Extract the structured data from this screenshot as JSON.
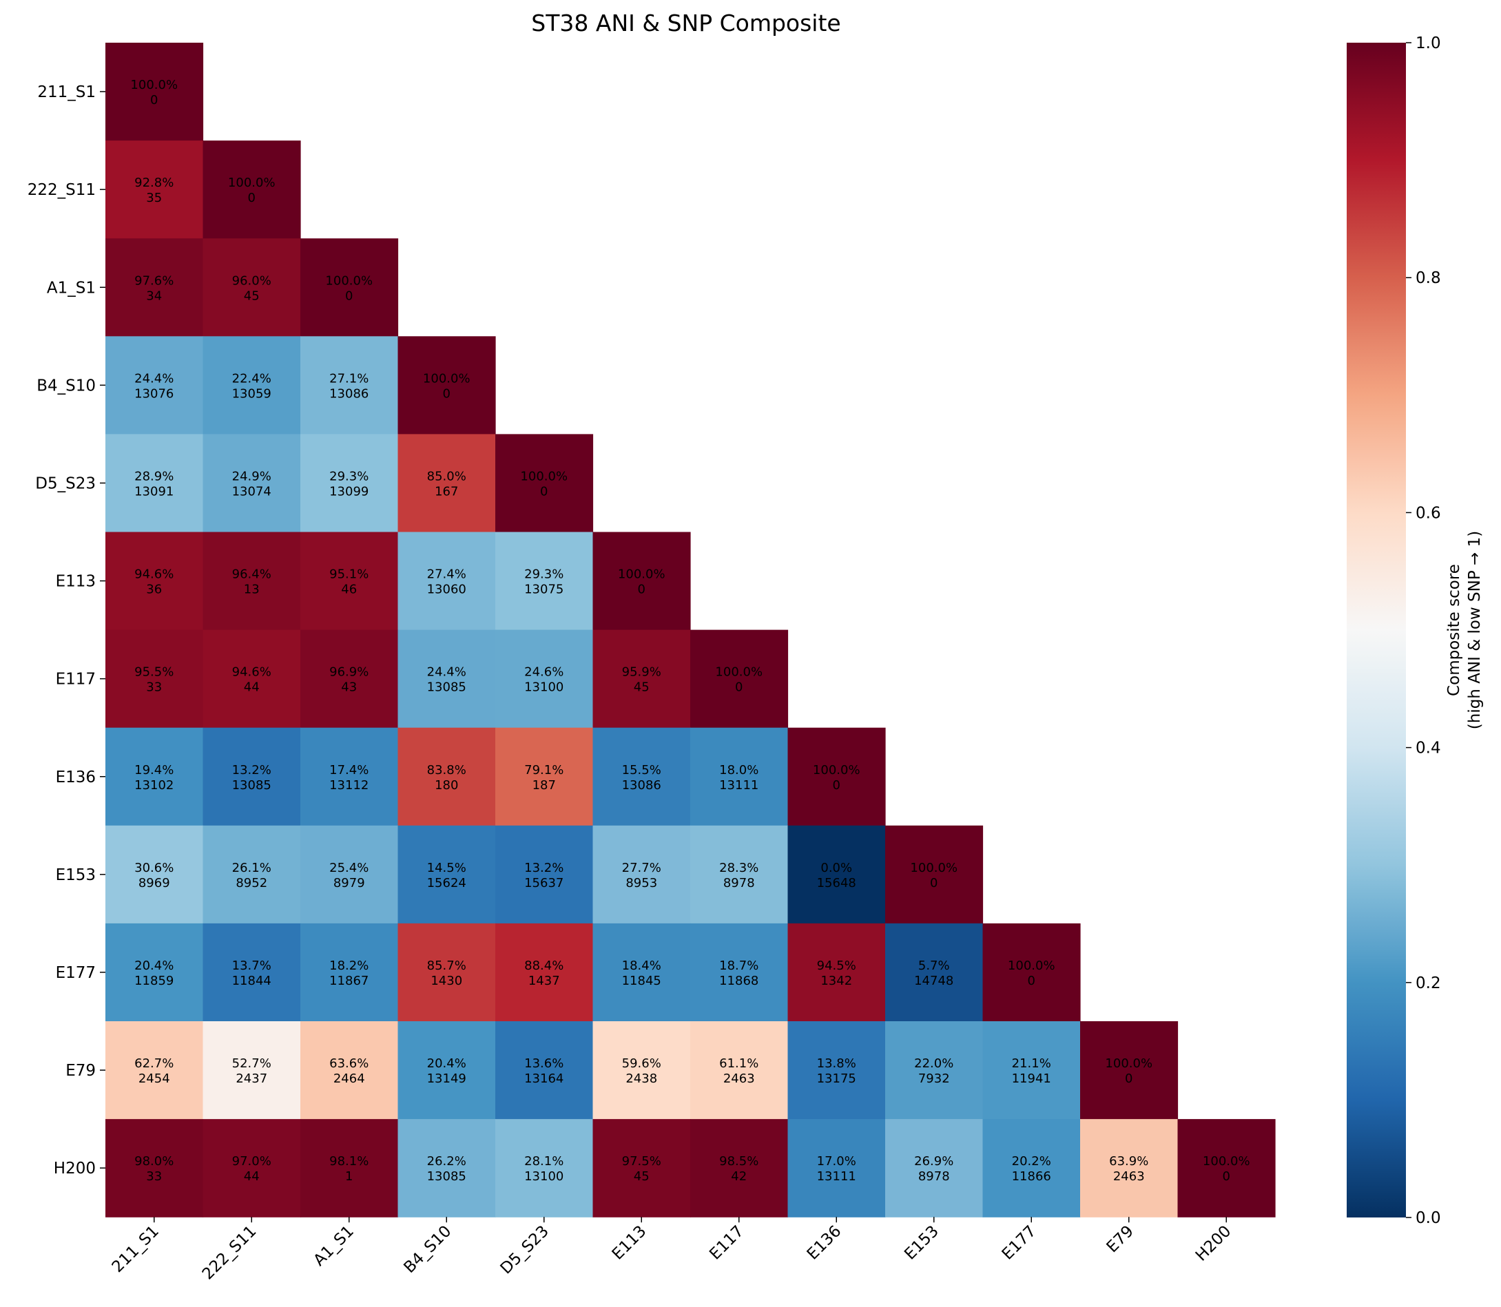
{
  "chart_data": {
    "type": "heatmap",
    "title": "ST38 ANI & SNP Composite",
    "labels": [
      "211_S1",
      "222_S11",
      "A1_S1",
      "B4_S10",
      "D5_S23",
      "E113",
      "E117",
      "E136",
      "E153",
      "E177",
      "E79",
      "H200"
    ],
    "triangle": "lower",
    "composite_pct": [
      [
        100.0
      ],
      [
        92.8,
        100.0
      ],
      [
        97.6,
        96.0,
        100.0
      ],
      [
        24.4,
        22.4,
        27.1,
        100.0
      ],
      [
        28.9,
        24.9,
        29.3,
        85.0,
        100.0
      ],
      [
        94.6,
        96.4,
        95.1,
        27.4,
        29.3,
        100.0
      ],
      [
        95.5,
        94.6,
        96.9,
        24.4,
        24.6,
        95.9,
        100.0
      ],
      [
        19.4,
        13.2,
        17.4,
        83.8,
        79.1,
        15.5,
        18.0,
        100.0
      ],
      [
        30.6,
        26.1,
        25.4,
        14.5,
        13.2,
        27.7,
        28.3,
        0.0,
        100.0
      ],
      [
        20.4,
        13.7,
        18.2,
        85.7,
        88.4,
        18.4,
        18.7,
        94.5,
        5.7,
        100.0
      ],
      [
        62.7,
        52.7,
        63.6,
        20.4,
        13.6,
        59.6,
        61.1,
        13.8,
        22.0,
        21.1,
        100.0
      ],
      [
        98.0,
        97.0,
        98.1,
        26.2,
        28.1,
        97.5,
        98.5,
        17.0,
        26.9,
        20.2,
        63.9,
        100.0
      ]
    ],
    "snp_counts": [
      [
        0
      ],
      [
        35,
        0
      ],
      [
        34,
        45,
        0
      ],
      [
        13076,
        13059,
        13086,
        0
      ],
      [
        13091,
        13074,
        13099,
        167,
        0
      ],
      [
        36,
        13,
        46,
        13060,
        13075,
        0
      ],
      [
        33,
        44,
        43,
        13085,
        13100,
        45,
        0
      ],
      [
        13102,
        13085,
        13112,
        180,
        187,
        13086,
        13111,
        0
      ],
      [
        8969,
        8952,
        8979,
        15624,
        15637,
        8953,
        8978,
        15648,
        0
      ],
      [
        11859,
        11844,
        11867,
        1430,
        1437,
        11845,
        11868,
        1342,
        14748,
        0
      ],
      [
        2454,
        2437,
        2464,
        13149,
        13164,
        2438,
        2463,
        13175,
        7932,
        11941,
        0
      ],
      [
        33,
        44,
        1,
        13085,
        13100,
        45,
        42,
        13111,
        8978,
        11866,
        2463,
        0
      ]
    ],
    "colormap": "RdBu_r",
    "vmin": 0.0,
    "vmax": 1.0,
    "colorbar": {
      "label_line1": "Composite score",
      "label_line2": "(high ANI & low SNP → 1)",
      "ticks": [
        "0.0",
        "0.2",
        "0.4",
        "0.6",
        "0.8",
        "1.0"
      ]
    },
    "colors": [
      "#053061",
      "#2166ac",
      "#4393c3",
      "#92c5de",
      "#d1e5f0",
      "#f7f7f7",
      "#fddbc7",
      "#f4a582",
      "#d6604d",
      "#b2182b",
      "#67001f"
    ]
  }
}
